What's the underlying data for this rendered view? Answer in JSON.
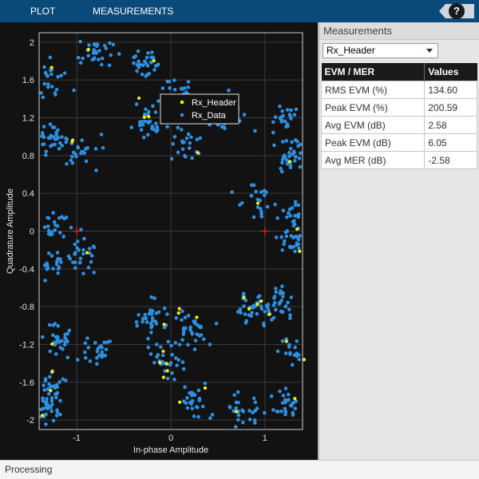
{
  "toolbar": {
    "tab_plot": "PLOT",
    "tab_measurements": "MEASUREMENTS",
    "help_label": "?"
  },
  "plot": {
    "xlabel": "In-phase Amplitude",
    "ylabel": "Quadrature Amplitude",
    "xlim": [
      -1.4,
      1.4
    ],
    "ylim": [
      -2.1,
      2.1
    ],
    "xticks": [
      "-1",
      "0",
      "1"
    ],
    "yticks": [
      "2",
      "1.6",
      "1.2",
      "0.8",
      "0.4",
      "0",
      "-0.4",
      "-0.8",
      "-1.2",
      "-1.6",
      "-2"
    ],
    "legend": [
      "Rx_Header",
      "Rx_Data"
    ],
    "colors": {
      "header": "#f2f20a",
      "data": "#2d8fe0",
      "ref": "#ff2020",
      "grid": "#3a3a3a",
      "axes": "#d0d0d0"
    }
  },
  "measurements": {
    "title": "Measurements",
    "selected": "Rx_Header",
    "columns": [
      "EVM / MER",
      "Values"
    ],
    "rows": [
      {
        "label": "RMS EVM (%)",
        "value": "134.60"
      },
      {
        "label": "Peak EVM (%)",
        "value": "200.59"
      },
      {
        "label": "Avg EVM (dB)",
        "value": "2.58"
      },
      {
        "label": "Peak EVM (dB)",
        "value": "6.05"
      },
      {
        "label": "Avg MER (dB)",
        "value": "-2.58"
      }
    ]
  },
  "status": {
    "text": "Processing"
  }
}
